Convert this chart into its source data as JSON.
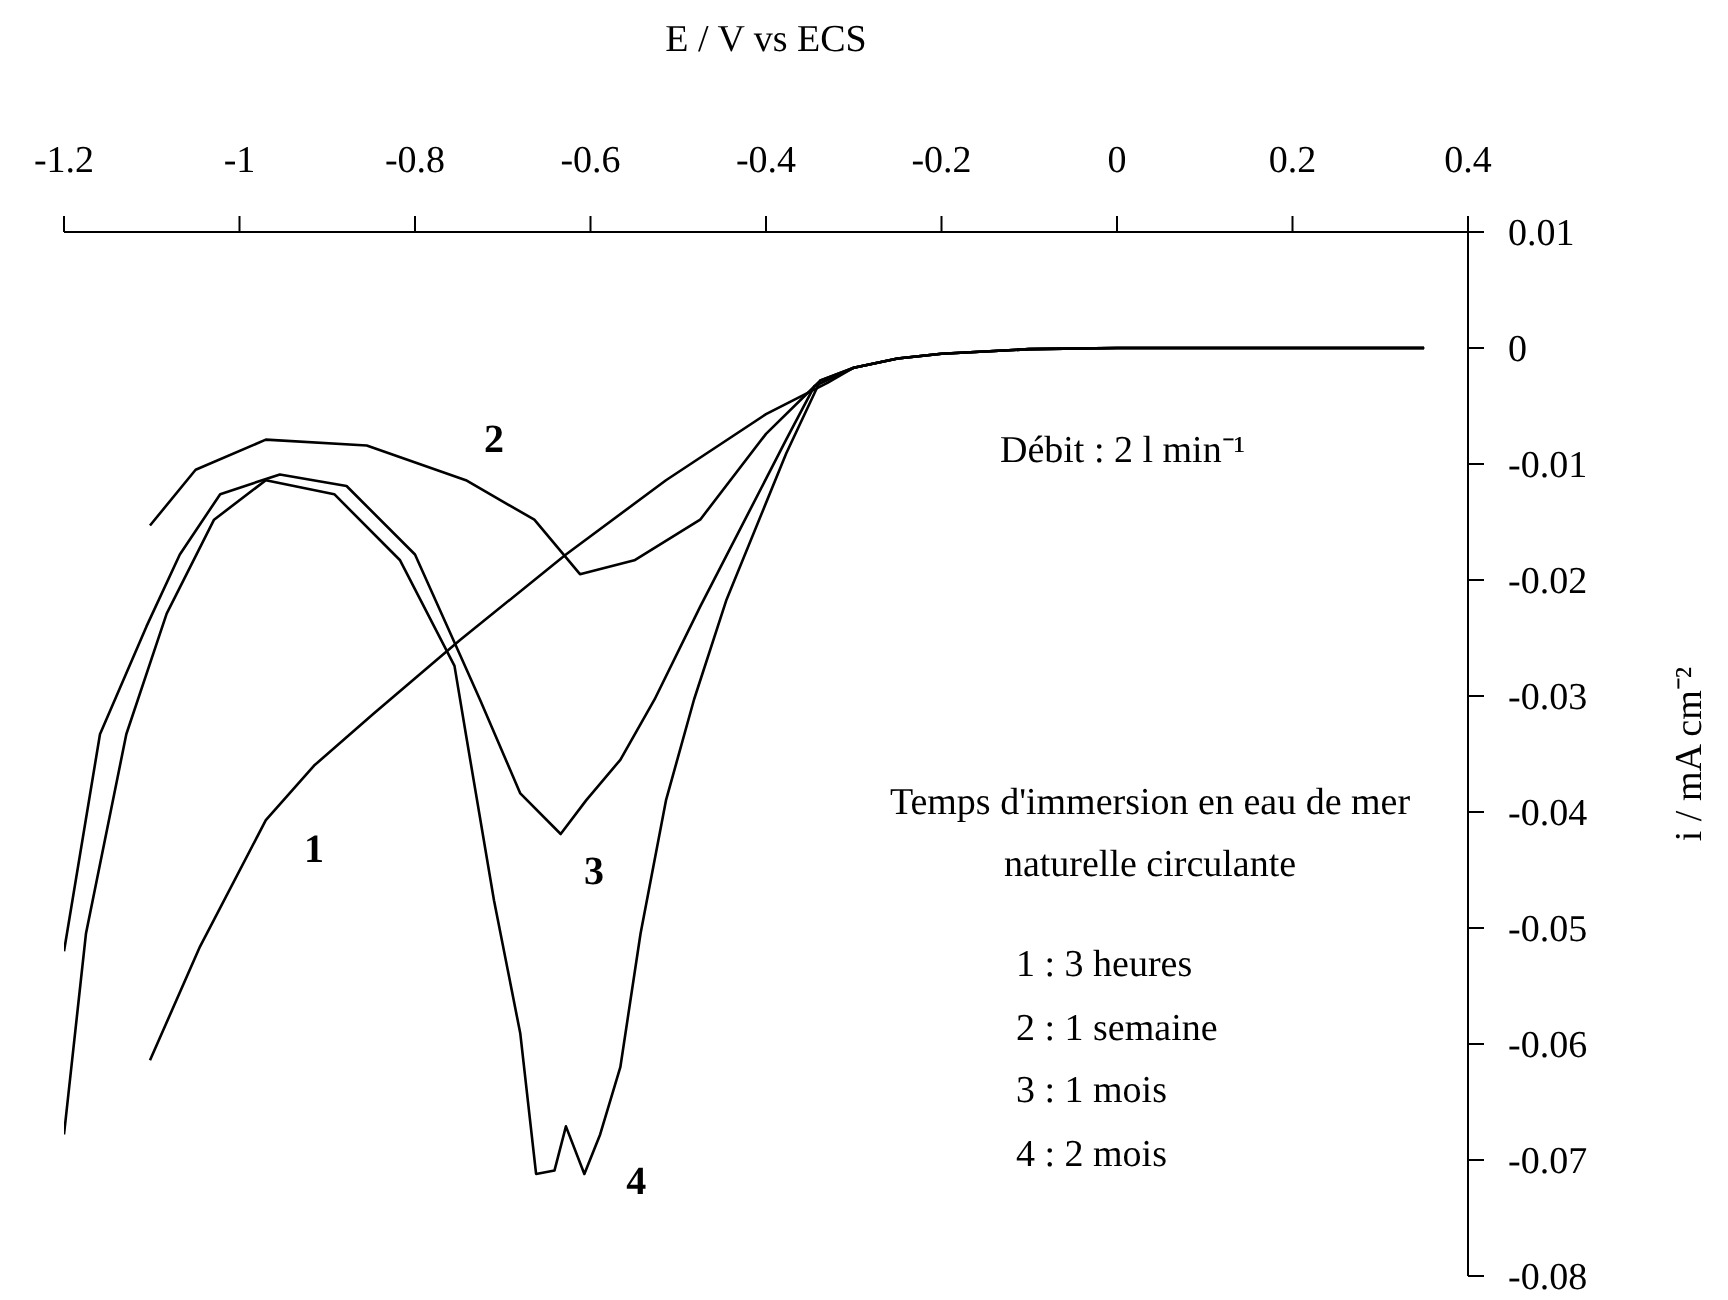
{
  "chart_data": {
    "type": "line",
    "xlabel": "E / V vs ECS",
    "ylabel": "i / mA cm⁻²",
    "xlim": [
      -1.2,
      0.4
    ],
    "xticks": [
      -1.2,
      -1,
      -0.8,
      -0.6,
      -0.4,
      -0.2,
      0,
      0.2,
      0.4
    ],
    "ylim": [
      -0.08,
      0.01
    ],
    "yticks": [
      0.01,
      0,
      -0.01,
      -0.02,
      -0.03,
      -0.04,
      -0.05,
      -0.06,
      -0.07,
      -0.08
    ],
    "grid": false,
    "legend": false,
    "marker": "none",
    "line_style": "solid",
    "series": [
      {
        "name": "1",
        "color": "#000000",
        "x": [
          -1.102,
          -1.045,
          -0.97,
          -0.915,
          -0.847,
          -0.749,
          -0.628,
          -0.514,
          -0.4,
          -0.33,
          -0.3,
          -0.25,
          -0.2,
          -0.1,
          0,
          0.35
        ],
        "values": [
          -0.0614,
          -0.0516,
          -0.0407,
          -0.036,
          -0.0315,
          -0.0252,
          -0.0178,
          -0.0114,
          -0.0057,
          -0.003,
          -0.0017,
          -0.0009,
          -0.0005,
          -0.0001,
          0,
          0
        ]
      },
      {
        "name": "2",
        "color": "#000000",
        "x": [
          -1.102,
          -1.05,
          -0.97,
          -0.855,
          -0.742,
          -0.664,
          -0.612,
          -0.55,
          -0.475,
          -0.4,
          -0.338,
          -0.3,
          -0.25,
          -0.2,
          -0.1,
          0,
          0.35
        ],
        "values": [
          -0.0153,
          -0.0105,
          -0.0079,
          -0.0084,
          -0.0114,
          -0.0148,
          -0.0195,
          -0.0183,
          -0.0148,
          -0.0074,
          -0.0028,
          -0.0017,
          -0.0009,
          -0.0005,
          -0.0001,
          0,
          0.0
        ]
      },
      {
        "name": "3",
        "color": "#000000",
        "x": [
          -1.2,
          -1.159,
          -1.106,
          -1.068,
          -1.022,
          -0.954,
          -0.878,
          -0.8,
          -0.749,
          -0.726,
          -0.68,
          -0.634,
          -0.605,
          -0.566,
          -0.527,
          -0.475,
          -0.377,
          -0.345,
          -0.3,
          -0.25,
          -0.2,
          -0.1,
          0,
          0.35
        ],
        "values": [
          -0.052,
          -0.0333,
          -0.024,
          -0.0178,
          -0.0126,
          -0.0109,
          -0.0119,
          -0.0178,
          -0.0264,
          -0.0303,
          -0.0384,
          -0.0419,
          -0.039,
          -0.0355,
          -0.0303,
          -0.0223,
          -0.0079,
          -0.0033,
          -0.0017,
          -0.0009,
          -0.0005,
          -0.0001,
          0,
          0
        ]
      },
      {
        "name": "4",
        "color": "#000000",
        "x": [
          -1.2,
          -1.175,
          -1.129,
          -1.083,
          -1.029,
          -0.97,
          -0.892,
          -0.817,
          -0.755,
          -0.742,
          -0.71,
          -0.68,
          -0.662,
          -0.641,
          -0.628,
          -0.607,
          -0.589,
          -0.566,
          -0.543,
          -0.514,
          -0.482,
          -0.445,
          -0.377,
          -0.338,
          -0.3,
          -0.25,
          -0.2,
          -0.1,
          0,
          0.35
        ],
        "values": [
          -0.0678,
          -0.0505,
          -0.0333,
          -0.0229,
          -0.0148,
          -0.0114,
          -0.0126,
          -0.0183,
          -0.0274,
          -0.0333,
          -0.0476,
          -0.0591,
          -0.0712,
          -0.0709,
          -0.0671,
          -0.0712,
          -0.0678,
          -0.062,
          -0.0505,
          -0.039,
          -0.0303,
          -0.0217,
          -0.0091,
          -0.0028,
          -0.0017,
          -0.0009,
          -0.0005,
          -0.0001,
          0,
          0
        ]
      }
    ],
    "annotations": [
      "Débit : 2 l min⁻¹",
      "Temps d'immersion en eau de mer naturelle circulante",
      "1 : 3 heures",
      "2 : 1 semaine",
      "3 : 1 mois",
      "4 : 2 mois"
    ]
  }
}
